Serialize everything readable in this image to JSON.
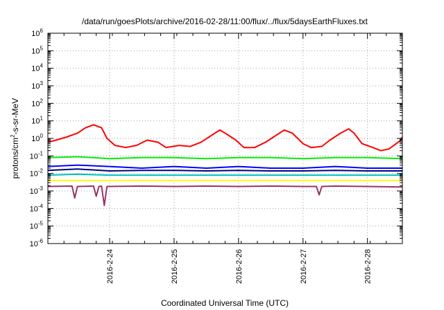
{
  "chart_data": {
    "type": "line",
    "title": "/data/run/goesPlots/archive/2016-02-28/11:00/flux/../flux/5daysEarthFluxes.txt",
    "xlabel": "Coordinated Universal Time (UTC)",
    "ylabel": {
      "base": "protons/cm",
      "sup": "2",
      "rest": "-s-sr-MeV"
    },
    "y_scale": "log",
    "ylim": [
      1e-06,
      1000000.0
    ],
    "xlim": [
      "2016-02-23T01:00",
      "2016-02-28T13:00"
    ],
    "x_ticks": [
      "2016-2-24",
      "2016-2-25",
      "2016-2-26",
      "2016-2-27",
      "2016-2-28"
    ],
    "y_ticks": [
      {
        "base": "10",
        "exp": "-6"
      },
      {
        "base": "10",
        "exp": "-5"
      },
      {
        "base": "10",
        "exp": "-4"
      },
      {
        "base": "10",
        "exp": "-3"
      },
      {
        "base": "10",
        "exp": "-2"
      },
      {
        "base": "10",
        "exp": "-1"
      },
      {
        "base": "10",
        "exp": "0"
      },
      {
        "base": "10",
        "exp": "1"
      },
      {
        "base": "10",
        "exp": "2"
      },
      {
        "base": "10",
        "exp": "3"
      },
      {
        "base": "10",
        "exp": "4"
      },
      {
        "base": "10",
        "exp": "5"
      },
      {
        "base": "10",
        "exp": "6"
      }
    ],
    "grid": true,
    "legend": "none",
    "series": [
      {
        "color": "#ff0000",
        "x": [
          "2016-02-23T01:00",
          "2016-02-23T04:00",
          "2016-02-23T08:00",
          "2016-02-23T12:00",
          "2016-02-23T15:00",
          "2016-02-23T18:00",
          "2016-02-23T21:00",
          "2016-02-23T23:00",
          "2016-02-24T02:00",
          "2016-02-24T06:00",
          "2016-02-24T10:00",
          "2016-02-24T14:00",
          "2016-02-24T18:00",
          "2016-02-24T21:00",
          "2016-02-25T02:00",
          "2016-02-25T06:00",
          "2016-02-25T10:00",
          "2016-02-25T14:00",
          "2016-02-25T17:00",
          "2016-02-25T19:00",
          "2016-02-25T23:00",
          "2016-02-26T02:00",
          "2016-02-26T06:00",
          "2016-02-26T10:00",
          "2016-02-26T14:00",
          "2016-02-26T17:00",
          "2016-02-26T20:00",
          "2016-02-27T00:00",
          "2016-02-27T03:00",
          "2016-02-27T07:00",
          "2016-02-27T10:00",
          "2016-02-27T14:00",
          "2016-02-27T17:00",
          "2016-02-27T19:00",
          "2016-02-27T22:00",
          "2016-02-28T02:00",
          "2016-02-28T05:00",
          "2016-02-28T08:00",
          "2016-02-28T12:00",
          "2016-02-28T13:00"
        ],
        "y": [
          0.6,
          0.8,
          1.2,
          2.0,
          4.0,
          6.0,
          4.0,
          1.0,
          0.4,
          0.3,
          0.4,
          0.8,
          0.6,
          0.3,
          0.4,
          0.35,
          0.6,
          1.5,
          3.0,
          2.0,
          0.8,
          0.3,
          0.3,
          0.6,
          1.5,
          3.0,
          2.0,
          0.5,
          0.3,
          0.35,
          0.8,
          2.0,
          3.5,
          2.0,
          0.5,
          0.3,
          0.2,
          0.25,
          0.7,
          1.2
        ]
      },
      {
        "color": "#00ee00",
        "x": [
          "2016-02-23T01:00",
          "2016-02-23T12:00",
          "2016-02-24T00:00",
          "2016-02-24T12:00",
          "2016-02-25T00:00",
          "2016-02-25T12:00",
          "2016-02-26T00:00",
          "2016-02-26T12:00",
          "2016-02-27T00:00",
          "2016-02-27T12:00",
          "2016-02-28T00:00",
          "2016-02-28T13:00"
        ],
        "y": [
          0.08,
          0.09,
          0.07,
          0.08,
          0.08,
          0.07,
          0.08,
          0.08,
          0.07,
          0.08,
          0.08,
          0.07
        ]
      },
      {
        "color": "#0000ff",
        "x": [
          "2016-02-23T01:00",
          "2016-02-23T12:00",
          "2016-02-24T00:00",
          "2016-02-24T12:00",
          "2016-02-25T00:00",
          "2016-02-25T12:00",
          "2016-02-26T00:00",
          "2016-02-26T12:00",
          "2016-02-27T00:00",
          "2016-02-27T12:00",
          "2016-02-28T00:00",
          "2016-02-28T13:00"
        ],
        "y": [
          0.025,
          0.03,
          0.025,
          0.02,
          0.025,
          0.02,
          0.025,
          0.02,
          0.02,
          0.025,
          0.02,
          0.02
        ]
      },
      {
        "color": "#000080",
        "x": [
          "2016-02-23T01:00",
          "2016-02-23T12:00",
          "2016-02-24T00:00",
          "2016-02-24T12:00",
          "2016-02-25T00:00",
          "2016-02-25T12:00",
          "2016-02-26T00:00",
          "2016-02-26T12:00",
          "2016-02-27T00:00",
          "2016-02-27T12:00",
          "2016-02-28T00:00",
          "2016-02-28T13:00"
        ],
        "y": [
          0.015,
          0.018,
          0.014,
          0.015,
          0.015,
          0.014,
          0.015,
          0.014,
          0.014,
          0.015,
          0.014,
          0.014
        ]
      },
      {
        "color": "#00bfbf",
        "x": [
          "2016-02-23T01:00",
          "2016-02-23T12:00",
          "2016-02-24T00:00",
          "2016-02-24T12:00",
          "2016-02-25T00:00",
          "2016-02-25T12:00",
          "2016-02-26T00:00",
          "2016-02-26T12:00",
          "2016-02-27T00:00",
          "2016-02-27T12:00",
          "2016-02-28T00:00",
          "2016-02-28T13:00"
        ],
        "y": [
          0.008,
          0.009,
          0.008,
          0.008,
          0.008,
          0.008,
          0.008,
          0.008,
          0.008,
          0.008,
          0.008,
          0.008
        ]
      },
      {
        "color": "#ffff00",
        "x": [
          "2016-02-23T01:00",
          "2016-02-28T13:00"
        ],
        "y": [
          0.004,
          0.004
        ]
      },
      {
        "color": "#993366",
        "x": [
          "2016-02-23T01:00",
          "2016-02-23T10:00",
          "2016-02-23T11:00",
          "2016-02-23T12:00",
          "2016-02-23T18:00",
          "2016-02-23T19:00",
          "2016-02-23T20:00",
          "2016-02-23T21:00",
          "2016-02-23T22:00",
          "2016-02-23T23:00",
          "2016-02-24T12:00",
          "2016-02-25T00:00",
          "2016-02-25T12:00",
          "2016-02-26T00:00",
          "2016-02-26T12:00",
          "2016-02-27T00:00",
          "2016-02-27T05:00",
          "2016-02-27T06:00",
          "2016-02-27T07:00",
          "2016-02-27T12:00",
          "2016-02-28T00:00",
          "2016-02-28T13:00"
        ],
        "y": [
          0.0018,
          0.0019,
          0.0004,
          0.0018,
          0.0019,
          0.0005,
          0.0018,
          0.0019,
          0.00015,
          0.0018,
          0.0019,
          0.0018,
          0.0019,
          0.0018,
          0.0019,
          0.0018,
          0.0018,
          0.0006,
          0.0018,
          0.0019,
          0.0018,
          0.0017
        ]
      }
    ]
  }
}
